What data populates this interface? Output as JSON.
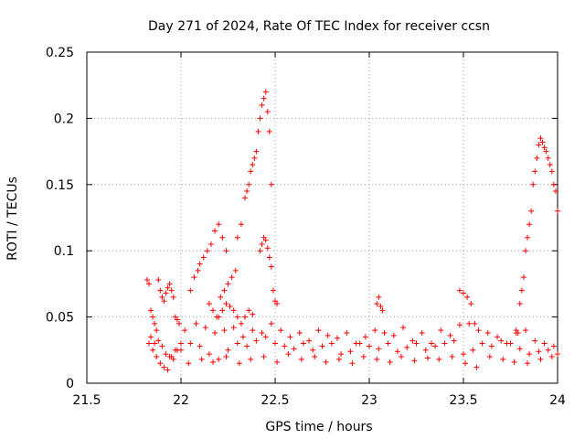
{
  "chart_data": {
    "type": "scatter",
    "title": "Day 271 of 2024, Rate Of TEC Index for receiver ccsn",
    "xlabel": "GPS time / hours",
    "ylabel": "ROTI / TECUs",
    "xlim": [
      21.5,
      24
    ],
    "ylim": [
      0,
      0.25
    ],
    "xticks": [
      "21.5",
      "22",
      "22.5",
      "23",
      "23.5",
      "24"
    ],
    "yticks": [
      "0",
      "0.05",
      "0.1",
      "0.15",
      "0.2",
      "0.25"
    ],
    "grid": true,
    "marker": "+",
    "color": "#ff0000",
    "series": [
      {
        "name": "ROTI",
        "x": [
          21.82,
          21.83,
          21.84,
          21.85,
          21.86,
          21.87,
          21.88,
          21.89,
          21.9,
          21.91,
          21.92,
          21.93,
          21.94,
          21.95,
          21.96,
          21.97,
          21.98,
          21.99,
          21.83,
          21.85,
          21.87,
          21.89,
          21.91,
          21.93,
          21.95,
          21.97,
          21.84,
          21.86,
          21.88,
          21.9,
          21.92,
          21.94,
          21.96,
          21.98,
          22.0,
          22.05,
          22.07,
          22.09,
          22.1,
          22.12,
          22.14,
          22.16,
          22.18,
          22.2,
          22.22,
          22.24,
          22.15,
          22.17,
          22.19,
          22.21,
          22.23,
          22.25,
          22.27,
          22.29,
          22.3,
          22.32,
          22.34,
          22.35,
          22.36,
          22.37,
          22.38,
          22.39,
          22.4,
          22.41,
          22.42,
          22.43,
          22.44,
          22.45,
          22.46,
          22.47,
          22.48,
          22.42,
          22.43,
          22.44,
          22.45,
          22.46,
          22.47,
          22.48,
          22.49,
          22.5,
          22.51,
          22.0,
          22.05,
          22.1,
          22.15,
          22.2,
          22.25,
          22.3,
          22.35,
          22.4,
          22.45,
          22.5,
          22.55,
          22.6,
          22.65,
          22.7,
          22.75,
          22.8,
          22.85,
          22.9,
          22.95,
          23.0,
          23.05,
          23.1,
          23.15,
          23.2,
          23.25,
          23.3,
          23.35,
          23.4,
          23.45,
          23.5,
          23.55,
          23.6,
          23.65,
          23.7,
          23.75,
          23.8,
          23.85,
          23.9,
          23.95,
          24.0,
          22.02,
          22.08,
          22.13,
          22.18,
          22.23,
          22.28,
          22.33,
          22.38,
          22.43,
          22.48,
          22.53,
          22.58,
          22.63,
          22.68,
          22.73,
          22.78,
          22.83,
          22.88,
          22.93,
          22.98,
          23.03,
          23.08,
          23.13,
          23.18,
          23.23,
          23.28,
          23.33,
          23.38,
          23.43,
          23.48,
          23.53,
          23.58,
          23.63,
          23.68,
          23.73,
          23.78,
          23.83,
          23.88,
          23.93,
          23.98,
          22.04,
          22.11,
          22.17,
          22.24,
          22.31,
          22.37,
          22.44,
          22.51,
          22.57,
          22.64,
          22.71,
          22.77,
          22.84,
          22.91,
          22.97,
          23.04,
          23.11,
          23.17,
          23.24,
          23.31,
          23.37,
          23.44,
          23.51,
          23.57,
          23.64,
          23.71,
          23.77,
          23.84,
          23.91,
          23.97,
          23.04,
          23.05,
          23.06,
          23.07,
          23.48,
          23.5,
          23.52,
          23.54,
          23.56,
          23.78,
          23.79,
          23.8,
          23.81,
          23.82,
          23.83,
          23.84,
          23.85,
          23.86,
          23.87,
          23.88,
          23.89,
          23.9,
          23.91,
          23.92,
          23.93,
          23.94,
          23.95,
          23.96,
          23.97,
          23.98,
          23.99,
          24.0,
          22.2,
          22.22,
          22.24,
          22.26,
          22.28,
          22.3,
          22.32,
          22.34,
          22.36,
          22.38
        ],
        "y": [
          0.078,
          0.075,
          0.055,
          0.05,
          0.045,
          0.04,
          0.078,
          0.07,
          0.065,
          0.062,
          0.068,
          0.072,
          0.075,
          0.07,
          0.065,
          0.05,
          0.048,
          0.045,
          0.03,
          0.025,
          0.02,
          0.015,
          0.012,
          0.01,
          0.02,
          0.025,
          0.035,
          0.03,
          0.032,
          0.028,
          0.022,
          0.02,
          0.018,
          0.025,
          0.03,
          0.07,
          0.08,
          0.085,
          0.09,
          0.095,
          0.1,
          0.105,
          0.115,
          0.12,
          0.11,
          0.1,
          0.06,
          0.055,
          0.05,
          0.065,
          0.07,
          0.075,
          0.08,
          0.085,
          0.11,
          0.12,
          0.14,
          0.145,
          0.15,
          0.16,
          0.165,
          0.17,
          0.175,
          0.19,
          0.2,
          0.21,
          0.215,
          0.22,
          0.205,
          0.19,
          0.15,
          0.1,
          0.105,
          0.11,
          0.108,
          0.102,
          0.095,
          0.088,
          0.07,
          0.062,
          0.06,
          0.025,
          0.03,
          0.028,
          0.022,
          0.018,
          0.025,
          0.03,
          0.028,
          0.032,
          0.035,
          0.03,
          0.028,
          0.026,
          0.03,
          0.025,
          0.028,
          0.03,
          0.022,
          0.024,
          0.03,
          0.028,
          0.026,
          0.03,
          0.024,
          0.027,
          0.03,
          0.025,
          0.028,
          0.03,
          0.032,
          0.022,
          0.025,
          0.03,
          0.028,
          0.032,
          0.03,
          0.026,
          0.022,
          0.024,
          0.025,
          0.022,
          0.04,
          0.045,
          0.042,
          0.038,
          0.04,
          0.042,
          0.035,
          0.04,
          0.038,
          0.045,
          0.04,
          0.035,
          0.038,
          0.032,
          0.04,
          0.036,
          0.034,
          0.038,
          0.03,
          0.035,
          0.04,
          0.038,
          0.036,
          0.042,
          0.032,
          0.038,
          0.03,
          0.04,
          0.036,
          0.044,
          0.045,
          0.04,
          0.038,
          0.035,
          0.03,
          0.038,
          0.04,
          0.032,
          0.03,
          0.028,
          0.015,
          0.018,
          0.016,
          0.02,
          0.015,
          0.018,
          0.02,
          0.016,
          0.022,
          0.018,
          0.02,
          0.016,
          0.018,
          0.015,
          0.02,
          0.018,
          0.016,
          0.02,
          0.017,
          0.019,
          0.018,
          0.02,
          0.015,
          0.012,
          0.02,
          0.018,
          0.016,
          0.015,
          0.018,
          0.02,
          0.06,
          0.065,
          0.058,
          0.055,
          0.07,
          0.068,
          0.065,
          0.06,
          0.045,
          0.04,
          0.038,
          0.06,
          0.07,
          0.08,
          0.1,
          0.11,
          0.12,
          0.13,
          0.15,
          0.16,
          0.17,
          0.18,
          0.185,
          0.182,
          0.178,
          0.175,
          0.17,
          0.165,
          0.16,
          0.15,
          0.145,
          0.13,
          0.05,
          0.055,
          0.06,
          0.058,
          0.055,
          0.05,
          0.045,
          0.05,
          0.055,
          0.052
        ]
      }
    ]
  }
}
